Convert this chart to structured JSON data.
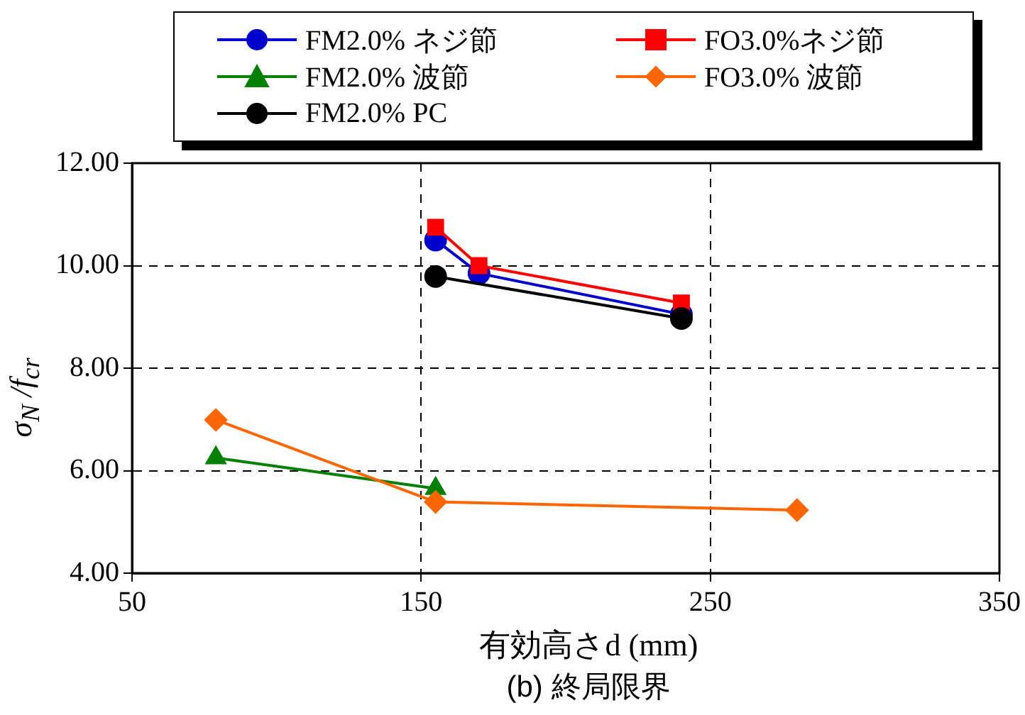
{
  "chart_data": {
    "type": "line",
    "title": "(b) 終局限界",
    "xlabel": "有効高さd (mm)",
    "ylabel": "σ$_{N}$ /f$_{cr}$",
    "xlim": [
      50,
      350
    ],
    "xticks": [
      50,
      150,
      250,
      350
    ],
    "ylim": [
      4,
      12
    ],
    "yticks": [
      {
        "value": 4,
        "label": "4.00"
      },
      {
        "value": 6,
        "label": "6.00"
      },
      {
        "value": 8,
        "label": "8.00"
      },
      {
        "value": 10,
        "label": "10.00"
      },
      {
        "value": 12,
        "label": "12.00"
      }
    ],
    "grid": true,
    "line_style": "solid",
    "legend": "top",
    "series": [
      {
        "name": "FM2.0% ネジ節",
        "color": "#0000cc",
        "marker": "circle",
        "x": [
          155,
          170,
          240
        ],
        "values": [
          10.5,
          9.85,
          9.05
        ]
      },
      {
        "name": "FO3.0%ネジ節",
        "color": "#ff0000",
        "marker": "square",
        "x": [
          155,
          170,
          240
        ],
        "values": [
          10.75,
          10.0,
          9.27
        ]
      },
      {
        "name": "FM2.0% 波節",
        "color": "#008000",
        "marker": "triangle",
        "x": [
          79,
          155
        ],
        "values": [
          6.25,
          5.65
        ]
      },
      {
        "name": "FO3.0% 波節",
        "color": "#ff6600",
        "marker": "diamond",
        "x": [
          79,
          155,
          280
        ],
        "values": [
          6.99,
          5.39,
          5.23
        ]
      },
      {
        "name": "FM2.0% PC",
        "color": "#000000",
        "marker": "circle",
        "x": [
          155,
          240
        ],
        "values": [
          9.79,
          8.97
        ]
      }
    ]
  }
}
